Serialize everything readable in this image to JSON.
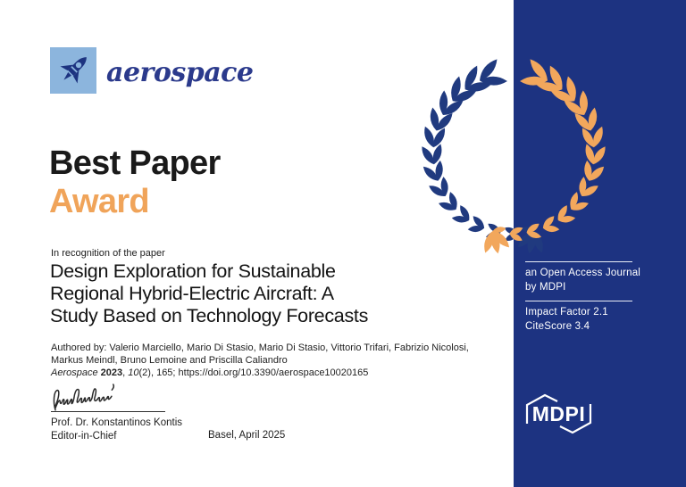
{
  "journal": {
    "name": "aerospace"
  },
  "award": {
    "line1": "Best Paper",
    "line2": "Award"
  },
  "recognition_text": "In recognition of the paper",
  "paper": {
    "title_lines": [
      "Design Exploration for Sustainable",
      "Regional Hybrid-Electric Aircraft: A",
      "Study Based on Technology Forecasts"
    ],
    "author_lines": [
      "Authored by:  Valerio Marciello, Mario Di Stasio, Mario Di Stasio, Vittorio Trifari, Fabrizio Nicolosi,",
      "Markus Meindl, Bruno Lemoine and Priscilla Caliandro"
    ],
    "citation": {
      "journal_italic": "Aerospace ",
      "year_bold": "2023",
      "sep1": ", ",
      "volume_italic": "10",
      "rest": "(2), 165; https://doi.org/10.3390/aerospace10020165"
    }
  },
  "signatory": {
    "name": "Prof. Dr. Konstantinos Kontis",
    "role": "Editor-in-Chief",
    "place_date": "Basel, April 2025"
  },
  "panel": {
    "info_line1": "an Open Access Journal",
    "info_line2": "by MDPI",
    "impact_factor": "Impact Factor 2.1",
    "cite_score": "CiteScore 3.4",
    "logo_text": "MDPI"
  },
  "colors": {
    "panel_blue": "#1d3381",
    "wreath_blue": "#203a7f",
    "wreath_orange": "#f2a75c",
    "logo_light_blue": "#8cb5dd",
    "journal_blue": "#2b3a8c",
    "award_orange": "#f0a45a",
    "text_black": "#1a1a1a"
  }
}
